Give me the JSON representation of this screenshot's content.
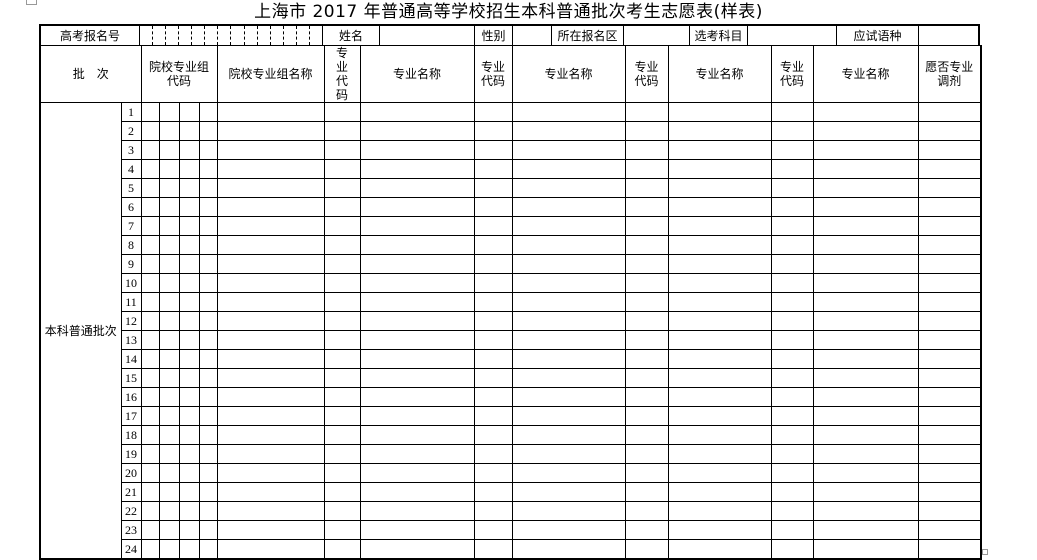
{
  "title": "上海市 2017 年普通高等学校招生本科普通批次考生志愿表(样表)",
  "top_row": {
    "exam_no_label": "高考报名号",
    "name_label": "姓名",
    "gender_label": "性别",
    "district_label": "所在报名区",
    "subjects_label": "选考科目",
    "language_label": "应试语种"
  },
  "headers": [
    "批　次",
    "院校专业组代码",
    "院校专业组名称",
    "专业代码",
    "专业名称",
    "专业代码",
    "专业名称",
    "专业代码",
    "专业名称",
    "专业代码",
    "专业名称",
    "愿否专业调剂"
  ],
  "batch_label": "本科普通批次",
  "rows": [
    "1",
    "2",
    "3",
    "4",
    "5",
    "6",
    "7",
    "8",
    "9",
    "10",
    "11",
    "12",
    "13",
    "14",
    "15",
    "16",
    "17",
    "18",
    "19",
    "20",
    "21",
    "22",
    "23",
    "24"
  ]
}
